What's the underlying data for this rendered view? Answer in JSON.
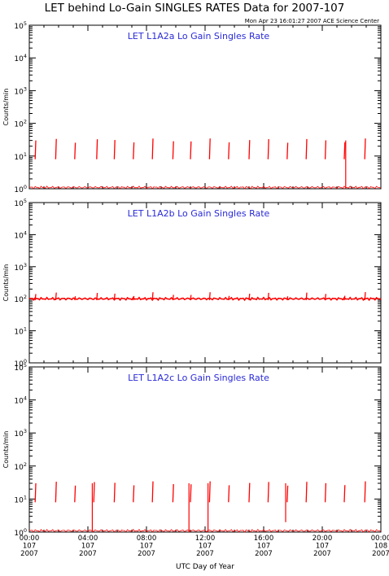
{
  "title": "LET behind Lo-Gain SINGLES RATES Data for 2007-107",
  "timestamp": "Mon Apr 23 16:01:27 2007 ACE Science Center",
  "colors": {
    "axes": "#000000",
    "data": "#ff0000",
    "panel_title": "#2a2ad8",
    "background": "#ffffff"
  },
  "chart_data": [
    {
      "type": "line",
      "panel_title": "LET L1A2a Lo Gain Singles Rate",
      "ylabel": "Counts/min",
      "yscale": "log",
      "ylim": [
        1,
        100000
      ],
      "ytick_labels": [
        "10^0",
        "10^1",
        "10^2",
        "10^3",
        "10^4",
        "10^5"
      ],
      "xlabel": "",
      "x_ticks_hours": [
        0,
        4,
        8,
        12,
        16,
        20,
        24
      ],
      "baseline": 1.1,
      "spike_times_hours": [
        0.4,
        1.8,
        3.1,
        4.6,
        5.8,
        7.1,
        8.4,
        9.8,
        11.0,
        12.3,
        13.6,
        15.0,
        16.3,
        17.6,
        18.9,
        20.2,
        21.5,
        22.9
      ],
      "spike_high": 30,
      "spike_low": 8,
      "dropouts": [
        {
          "x": 21.6,
          "y": 1.0
        }
      ]
    },
    {
      "type": "line",
      "panel_title": "LET L1A2b Lo Gain Singles Rate",
      "ylabel": "Counts/min",
      "yscale": "log",
      "ylim": [
        1,
        100000
      ],
      "ytick_labels": [
        "10^0",
        "10^1",
        "10^2",
        "10^3",
        "10^4",
        "10^5"
      ],
      "xlabel": "",
      "x_ticks_hours": [
        0,
        4,
        8,
        12,
        16,
        20,
        24
      ],
      "baseline": 100,
      "spike_times_hours": [
        0.4,
        1.8,
        3.1,
        4.6,
        5.8,
        7.1,
        8.4,
        9.8,
        11.0,
        12.3,
        13.6,
        15.0,
        16.3,
        17.6,
        18.9,
        20.2,
        21.5,
        22.9
      ],
      "spike_high": 140,
      "spike_low": 90,
      "dropouts": []
    },
    {
      "type": "line",
      "panel_title": "LET L1A2c Lo Gain Singles Rate",
      "ylabel": "Counts/min",
      "yscale": "log",
      "ylim": [
        1,
        100000
      ],
      "ytick_labels": [
        "10^0",
        "10^1",
        "10^2",
        "10^3",
        "10^4",
        "10^5"
      ],
      "xlabel": "UTC Day of Year",
      "x_ticks_hours": [
        0,
        4,
        8,
        12,
        16,
        20,
        24
      ],
      "x_tick_labels": [
        [
          "00:00",
          "107",
          "2007"
        ],
        [
          "04:00",
          "107",
          "2007"
        ],
        [
          "08:00",
          "107",
          "2007"
        ],
        [
          "12:00",
          "107",
          "2007"
        ],
        [
          "16:00",
          "107",
          "2007"
        ],
        [
          "20:00",
          "107",
          "2007"
        ],
        [
          "00:00",
          "108",
          "2007"
        ]
      ],
      "baseline": 1.1,
      "spike_times_hours": [
        0.4,
        1.8,
        3.1,
        4.4,
        5.8,
        7.1,
        8.4,
        9.8,
        11.0,
        12.3,
        13.6,
        15.0,
        16.3,
        17.6,
        18.9,
        20.2,
        21.5,
        22.9
      ],
      "spike_high": 30,
      "spike_low": 8,
      "dropouts": [
        {
          "x": 4.3,
          "y": 1.0
        },
        {
          "x": 10.9,
          "y": 1.0
        },
        {
          "x": 12.2,
          "y": 1.0
        },
        {
          "x": 17.5,
          "y": 2.0
        }
      ]
    }
  ]
}
